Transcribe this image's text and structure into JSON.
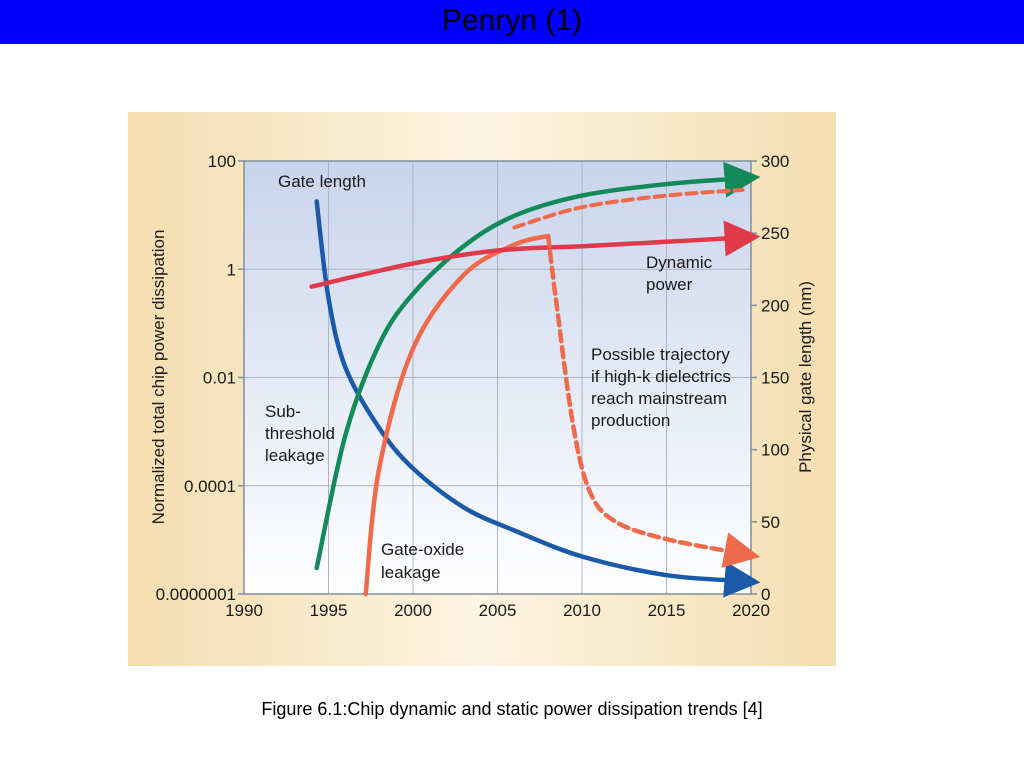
{
  "slide": {
    "title": "Penryn (1)",
    "caption": "Figure 6.1:Chip dynamic and static power dissipation trends [4]"
  },
  "colors": {
    "title_bar": "#0000ff",
    "panel_bg": "#f7e3b8",
    "plot_bg_top": "#c9d4ec",
    "plot_bg_bottom": "#ffffff",
    "gate_length": "#1a5aa8",
    "subthreshold": "#138a5a",
    "gate_oxide": "#ef6a4a",
    "dynamic": "#e03a4a",
    "high_k": "#ef6a4a"
  },
  "chart_data": {
    "type": "line",
    "x_ticks": [
      "1990",
      "1995",
      "2000",
      "2005",
      "2010",
      "2015",
      "2020"
    ],
    "y_left_ticks": [
      "100",
      "1",
      "0.01",
      "0.0001",
      "0.0000001"
    ],
    "y_right_ticks": [
      "300",
      "250",
      "200",
      "150",
      "100",
      "50",
      "0"
    ],
    "ylabel_left": "Normalized total chip power dissipation",
    "ylabel_right": "Physical gate length (nm)",
    "xlim": [
      1990,
      2020
    ],
    "y_right_lim": [
      0,
      300
    ],
    "series": [
      {
        "name": "Gate length",
        "axis": "right",
        "x": [
          1994.3,
          1995,
          1996,
          1998,
          2000,
          2003,
          2006,
          2010,
          2015,
          2019.5
        ],
        "y": [
          272,
          205,
          157,
          115,
          87,
          60,
          44,
          26,
          13,
          9
        ]
      },
      {
        "name": "Sub-threshold leakage",
        "axis": "right",
        "x": [
          1994.3,
          1996,
          1998,
          2000,
          2003,
          2006,
          2010,
          2015,
          2019.5
        ],
        "y": [
          18,
          110,
          173,
          208,
          241,
          262,
          276,
          284,
          288
        ]
      },
      {
        "name": "Gate-oxide leakage",
        "axis": "right",
        "x": [
          1997.2,
          1998,
          2000,
          2003,
          2006,
          2008
        ],
        "y": [
          0,
          87,
          170,
          221,
          242,
          248
        ]
      },
      {
        "name": "Dynamic power",
        "axis": "right",
        "x": [
          1994,
          2000,
          2005,
          2010,
          2015,
          2019.5
        ],
        "y": [
          213,
          229,
          238,
          241,
          244,
          247
        ]
      },
      {
        "name": "Possible trajectory if high-k dielectrics reach mainstream production",
        "axis": "right",
        "x": [
          2008,
          2008.5,
          2009.5,
          2010.5,
          2012,
          2015,
          2019.5
        ],
        "y": [
          248,
          200,
          115,
          70,
          50,
          38,
          28
        ]
      }
    ],
    "annotations": [
      {
        "lines": [
          "Gate length"
        ]
      },
      {
        "lines": [
          "Dynamic",
          "power"
        ]
      },
      {
        "lines": [
          "Possible trajectory",
          "if high-k dielectrics",
          "reach mainstream",
          "production"
        ]
      },
      {
        "lines": [
          "Sub-",
          "threshold",
          "leakage"
        ]
      },
      {
        "lines": [
          "Gate-oxide",
          "leakage"
        ]
      }
    ]
  }
}
